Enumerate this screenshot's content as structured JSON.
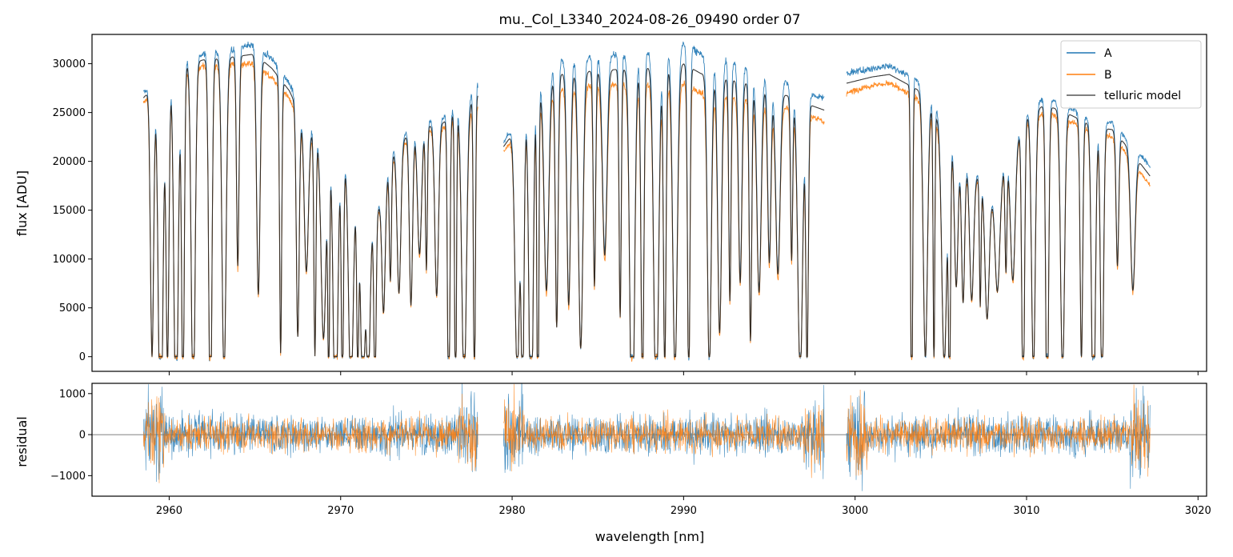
{
  "chart_data": [
    {
      "type": "line",
      "panel": "top",
      "title": "mu._Col_L3340_2024-08-26_09490  order 07",
      "xlabel": "",
      "ylabel": "flux [ADU]",
      "xlim": [
        2955.5,
        3020.5
      ],
      "ylim": [
        -1500,
        33000
      ],
      "xticks": [
        2960,
        2970,
        2980,
        2990,
        3000,
        3010,
        3020
      ],
      "yticks": [
        0,
        5000,
        10000,
        15000,
        20000,
        25000,
        30000
      ],
      "ytick_labels": [
        "0",
        "5000",
        "10000",
        "15000",
        "20000",
        "25000",
        "30000"
      ],
      "legend": {
        "position": "top-right",
        "entries": [
          {
            "label": "A",
            "color": "#1f77b4"
          },
          {
            "label": "B",
            "color": "#ff7f0e"
          },
          {
            "label": "telluric model",
            "color": "#555555"
          }
        ]
      },
      "segments": [
        [
          2958.5,
          2978.0
        ],
        [
          2979.5,
          2998.2
        ],
        [
          2999.5,
          3017.2
        ]
      ],
      "series": [
        {
          "name": "A",
          "color": "#1f77b4",
          "continuum_x": [
            2958.5,
            2960,
            2962,
            2964,
            2965,
            2966,
            2967,
            2968,
            2969,
            2970,
            2971,
            2972,
            2973,
            2974,
            2975,
            2976,
            2977,
            2978,
            2979.5,
            2981,
            2982,
            2983,
            2985,
            2987,
            2989,
            2990,
            2991,
            2993,
            2995,
            2997,
            2998.2,
            2999.5,
            3001,
            3002,
            3004,
            3006,
            3008,
            3010,
            3011,
            3012,
            3014,
            3015,
            3016,
            3017.2
          ],
          "continuum_y": [
            27000,
            30000,
            31000,
            31500,
            32000,
            30500,
            28000,
            24000,
            22500,
            21500,
            16000,
            14000,
            21000,
            23500,
            24000,
            24500,
            26000,
            28000,
            22000,
            26000,
            29500,
            30500,
            30800,
            31000,
            31500,
            32000,
            31000,
            30000,
            29000,
            27000,
            26500,
            29000,
            29500,
            29800,
            28000,
            21000,
            17000,
            25000,
            26500,
            26000,
            24000,
            24000,
            22000,
            19500
          ]
        },
        {
          "name": "B",
          "color": "#ff7f0e",
          "continuum_x": [
            2958.5,
            2960,
            2962,
            2964,
            2965,
            2966,
            2967,
            2968,
            2969,
            2970,
            2971,
            2972,
            2973,
            2974,
            2975,
            2976,
            2977,
            2978,
            2979.5,
            2981,
            2982,
            2983,
            2985,
            2987,
            2989,
            2990,
            2991,
            2993,
            2995,
            2997,
            2998.2,
            2999.5,
            3001,
            3002,
            3004,
            3006,
            3008,
            3010,
            3011,
            3012,
            3014,
            3015,
            3016,
            3017.2
          ],
          "continuum_y": [
            26000,
            29000,
            29800,
            30000,
            30000,
            28500,
            26500,
            23000,
            21500,
            20500,
            15500,
            13500,
            20000,
            22500,
            23000,
            23500,
            24500,
            25500,
            21000,
            24500,
            27000,
            27500,
            27800,
            28000,
            28000,
            28000,
            27000,
            26500,
            26000,
            25000,
            24000,
            27000,
            27800,
            28000,
            26000,
            20000,
            16500,
            24000,
            25000,
            24500,
            23000,
            22500,
            20500,
            17500
          ]
        },
        {
          "name": "telluric model",
          "color": "#222222",
          "absorption_lines": [
            2959.0,
            2959.5,
            2959.9,
            2960.4,
            2960.8,
            2961.4,
            2962.4,
            2963.2,
            2964.0,
            2965.2,
            2966.5,
            2967.5,
            2968.0,
            2968.5,
            2969.0,
            2969.3,
            2969.7,
            2970.1,
            2970.6,
            2971.0,
            2971.3,
            2971.6,
            2972.0,
            2972.5,
            2972.9,
            2973.4,
            2974.1,
            2974.6,
            2975.0,
            2975.6,
            2976.3,
            2976.7,
            2977.2,
            2977.8,
            2980.3,
            2980.6,
            2981.1,
            2981.5,
            2982.0,
            2982.6,
            2983.3,
            2984.0,
            2984.8,
            2985.4,
            2986.3,
            2987.0,
            2987.6,
            2988.4,
            2988.9,
            2989.5,
            2990.3,
            2991.5,
            2992.1,
            2992.7,
            2993.3,
            2993.9,
            2994.4,
            2995.0,
            2995.5,
            2996.3,
            2996.8,
            2997.2,
            3003.3,
            3004.1,
            3004.6,
            3005.2,
            3005.5,
            3005.9,
            3006.3,
            3006.8,
            3007.3,
            3007.7,
            3008.3,
            3008.8,
            3009.2,
            3009.8,
            3010.4,
            3011.2,
            3012.1,
            3013.2,
            3013.9,
            3014.4,
            3015.3,
            3016.2
          ]
        }
      ]
    },
    {
      "type": "line",
      "panel": "bottom",
      "xlabel": "wavelength [nm]",
      "ylabel": "residual",
      "xlim": [
        2955.5,
        3020.5
      ],
      "ylim": [
        -1500,
        1250
      ],
      "xticks": [
        2960,
        2970,
        2980,
        2990,
        3000,
        3010,
        3020
      ],
      "xtick_labels": [
        "2960",
        "2970",
        "2980",
        "2990",
        "3000",
        "3010",
        "3020"
      ],
      "yticks": [
        -1000,
        0,
        1000
      ],
      "ytick_labels": [
        "−1000",
        "0",
        "1000"
      ],
      "zero_line": true,
      "series": [
        {
          "name": "A",
          "color": "#1f77b4",
          "noise_amplitude": 450
        },
        {
          "name": "B",
          "color": "#ff7f0e",
          "noise_amplitude": 400
        }
      ]
    }
  ]
}
